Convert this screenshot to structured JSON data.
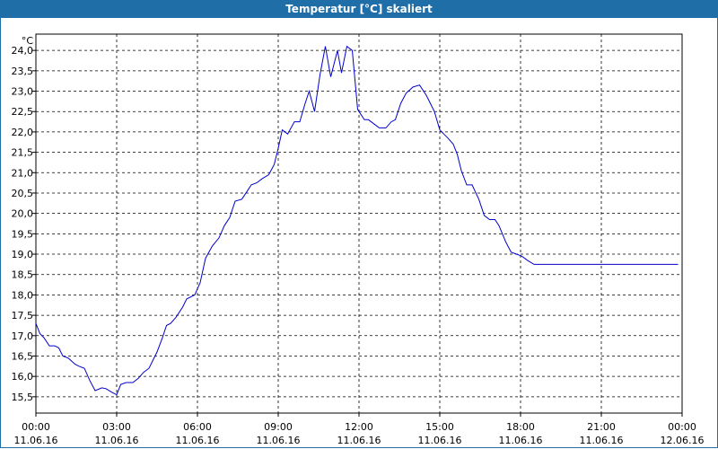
{
  "window": {
    "title": "Temperatur [°C] skaliert"
  },
  "chart_data": {
    "type": "line",
    "title": "Temperatur [°C] skaliert",
    "ylabel": "°C",
    "xlabel": "",
    "ylim": [
      15.1,
      24.4
    ],
    "xlim": [
      0,
      24
    ],
    "grid": true,
    "y_ticks": [
      "15,5",
      "16,0",
      "16,5",
      "17,0",
      "17,5",
      "18,0",
      "18,5",
      "19,0",
      "19,5",
      "20,0",
      "20,5",
      "21,0",
      "21,5",
      "22,0",
      "22,5",
      "23,0",
      "23,5",
      "24,0"
    ],
    "x_ticks": [
      {
        "time": "00:00",
        "date": "11.06.16"
      },
      {
        "time": "03:00",
        "date": "11.06.16"
      },
      {
        "time": "06:00",
        "date": "11.06.16"
      },
      {
        "time": "09:00",
        "date": "11.06.16"
      },
      {
        "time": "12:00",
        "date": "11.06.16"
      },
      {
        "time": "15:00",
        "date": "11.06.16"
      },
      {
        "time": "18:00",
        "date": "11.06.16"
      },
      {
        "time": "21:00",
        "date": "11.06.16"
      },
      {
        "time": "00:00",
        "date": "12.06.16"
      }
    ],
    "series": [
      {
        "color": "#0000cc",
        "x": [
          0,
          0.15,
          0.3,
          0.5,
          0.7,
          0.85,
          1.0,
          1.2,
          1.45,
          1.6,
          1.8,
          2.0,
          2.2,
          2.45,
          2.6,
          2.85,
          3.0,
          3.15,
          3.35,
          3.6,
          3.8,
          4.0,
          4.2,
          4.5,
          4.7,
          4.85,
          5.0,
          5.2,
          5.45,
          5.6,
          5.9,
          6.1,
          6.3,
          6.55,
          6.8,
          7.0,
          7.2,
          7.4,
          7.65,
          7.85,
          8.0,
          8.2,
          8.4,
          8.65,
          8.85,
          9.0,
          9.15,
          9.35,
          9.6,
          9.8,
          10.0,
          10.15,
          10.35,
          10.55,
          10.75,
          10.95,
          11.2,
          11.35,
          11.55,
          11.75,
          11.95,
          12.2,
          12.35,
          12.55,
          12.75,
          13.0,
          13.2,
          13.35,
          13.55,
          13.75,
          14.0,
          14.25,
          14.5,
          14.65,
          14.8,
          15.0,
          15.15,
          15.3,
          15.5,
          15.65,
          15.8,
          16.0,
          16.2,
          16.45,
          16.65,
          16.85,
          17.05,
          17.2,
          17.45,
          17.65,
          17.85,
          18.05,
          18.25,
          18.5,
          18.7,
          18.95,
          19.2,
          19.4,
          19.65,
          19.85,
          20.1,
          20.3,
          20.55,
          20.75,
          20.95,
          21.15,
          21.35,
          21.6,
          21.8,
          22.0,
          22.2,
          22.45,
          22.7,
          22.95,
          23.2,
          23.45,
          23.65,
          23.85
        ],
        "values": [
          17.3,
          17.05,
          16.95,
          16.75,
          16.75,
          16.7,
          16.5,
          16.45,
          16.3,
          16.25,
          16.2,
          15.9,
          15.65,
          15.72,
          15.7,
          15.6,
          15.55,
          15.8,
          15.85,
          15.85,
          15.95,
          16.1,
          16.2,
          16.6,
          16.95,
          17.25,
          17.3,
          17.45,
          17.7,
          17.9,
          18.0,
          18.3,
          18.9,
          19.2,
          19.4,
          19.7,
          19.9,
          20.3,
          20.35,
          20.55,
          20.7,
          20.75,
          20.85,
          20.95,
          21.2,
          21.6,
          22.05,
          21.95,
          22.25,
          22.25,
          22.7,
          23.0,
          22.5,
          23.4,
          24.1,
          23.35,
          24.0,
          23.45,
          24.1,
          24.0,
          22.55,
          22.3,
          22.3,
          22.2,
          22.1,
          22.1,
          22.25,
          22.3,
          22.7,
          22.95,
          23.1,
          23.15,
          22.9,
          22.7,
          22.5,
          22.05,
          21.95,
          21.85,
          21.7,
          21.45,
          21.05,
          20.7,
          20.7,
          20.35,
          19.95,
          19.85,
          19.85,
          19.7,
          19.3,
          19.05,
          19.0,
          18.95,
          18.85,
          18.75,
          18.75,
          18.75,
          18.75,
          18.75,
          18.75,
          18.75,
          18.75,
          18.75,
          18.75,
          18.75,
          18.75,
          18.75,
          18.75,
          18.75,
          18.75,
          18.75,
          18.75,
          18.75,
          18.75,
          18.75,
          18.75,
          18.75,
          18.75,
          18.75
        ]
      }
    ]
  }
}
